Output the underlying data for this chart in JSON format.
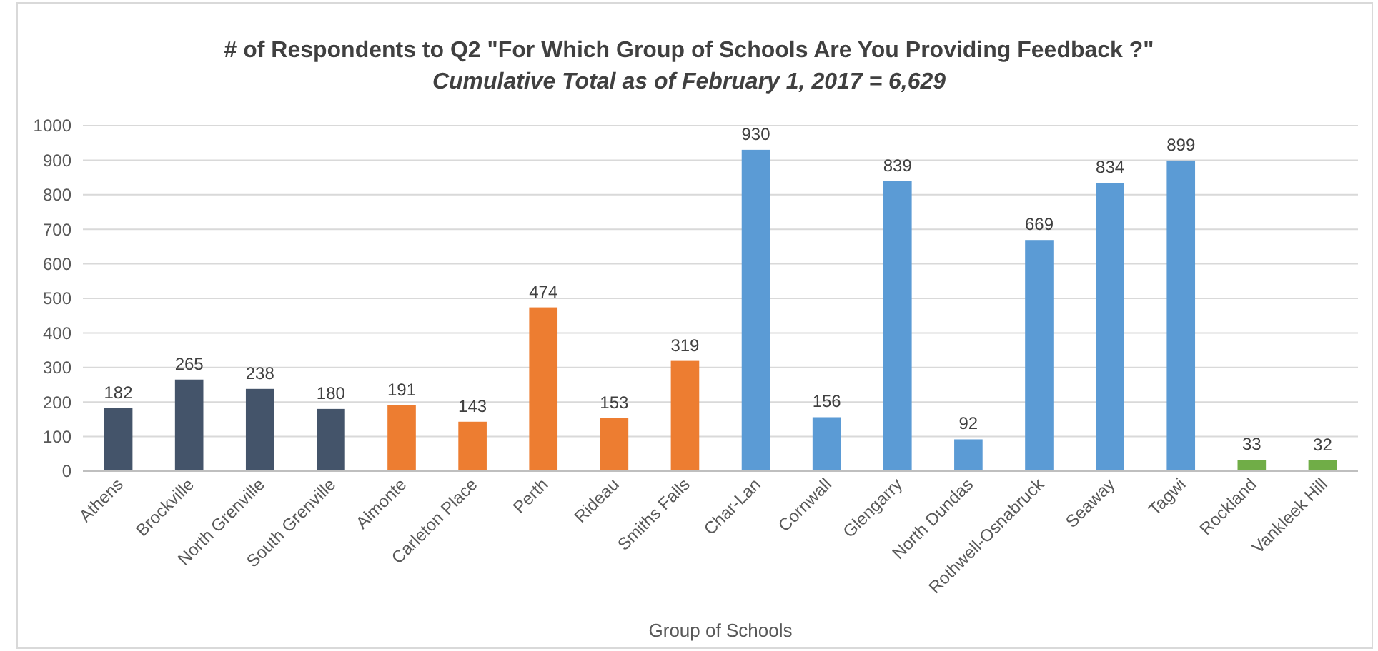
{
  "chart_data": {
    "type": "bar",
    "title": "# of Respondents to Q2 \"For Which Group of Schools Are You Providing Feedback ?\"",
    "subtitle": "Cumulative Total as of February 1, 2017 = 6,629",
    "xlabel": "Group of Schools",
    "categories": [
      "Athens",
      "Brockville",
      "North Grenville",
      "South Grenville",
      "Almonte",
      "Carleton Place",
      "Perth",
      "Rideau",
      "Smiths Falls",
      "Char-Lan",
      "Cornwall",
      "Glengarry",
      "North Dundas",
      "Rothwell-Osnabruck",
      "Seaway",
      "Tagwi",
      "Rockland",
      "Vankleek Hill"
    ],
    "values": [
      182,
      265,
      238,
      180,
      191,
      143,
      474,
      153,
      319,
      930,
      156,
      839,
      92,
      669,
      834,
      899,
      33,
      32
    ],
    "colors": [
      "#44546a",
      "#44546a",
      "#44546a",
      "#44546a",
      "#ed7d31",
      "#ed7d31",
      "#ed7d31",
      "#ed7d31",
      "#ed7d31",
      "#5b9bd5",
      "#5b9bd5",
      "#5b9bd5",
      "#5b9bd5",
      "#5b9bd5",
      "#5b9bd5",
      "#5b9bd5",
      "#70ad47",
      "#70ad47"
    ],
    "ylim": [
      0,
      1000
    ],
    "yticks": [
      0,
      100,
      200,
      300,
      400,
      500,
      600,
      700,
      800,
      900,
      1000
    ],
    "grid": "y",
    "data_labels": true
  }
}
